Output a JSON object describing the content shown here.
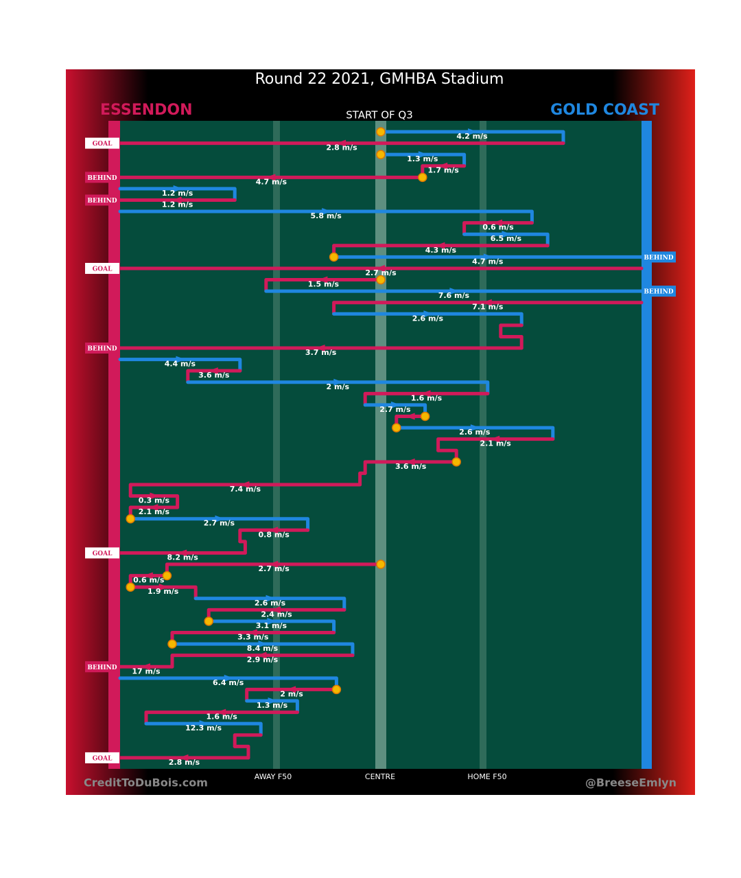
{
  "chart_data": {
    "type": "possession-chain",
    "title": "Round 22 2021, GMHBA Stadium",
    "subtitle": "START OF Q3",
    "teams": [
      {
        "name": "ESSENDON",
        "color": "#d11a5a"
      },
      {
        "name": "GOLD COAST",
        "color": "#1f87e0"
      }
    ],
    "field_labels": [
      "AWAY F50",
      "CENTRE",
      "HOME F50"
    ],
    "credits": [
      "CreditToDuBois.com",
      "@BreeseEmlyn"
    ],
    "segments": [
      {
        "team": 1,
        "from": 50,
        "to": 85,
        "label": "4.2 m/s",
        "marker": "start"
      },
      {
        "team": 0,
        "from": 85,
        "to": 0,
        "label": "2.8 m/s",
        "outcome": "GOAL"
      },
      {
        "team": 1,
        "from": 50,
        "to": 66,
        "label": "1.3 m/s",
        "marker": "start"
      },
      {
        "team": 0,
        "from": 66,
        "to": 58,
        "label": "1.7 m/s"
      },
      {
        "team": 0,
        "from": 58,
        "to": 0,
        "label": "4.7 m/s",
        "marker": "start",
        "outcome": "BEHIND"
      },
      {
        "team": 1,
        "from": 0,
        "to": 22,
        "label": "1.2 m/s"
      },
      {
        "team": 0,
        "from": 22,
        "to": 0,
        "label": "1.2 m/s",
        "outcome": "BEHIND"
      },
      {
        "team": 1,
        "from": 0,
        "to": 79,
        "label": "5.8 m/s"
      },
      {
        "team": 0,
        "from": 79,
        "to": 66,
        "label": "0.6 m/s"
      },
      {
        "team": 1,
        "from": 66,
        "to": 82,
        "label": "6.5 m/s"
      },
      {
        "team": 0,
        "from": 82,
        "to": 41,
        "label": "4.3 m/s"
      },
      {
        "team": 1,
        "from": 41,
        "to": 100,
        "label": "4.7 m/s",
        "marker": "start",
        "outcome": "BEHIND"
      },
      {
        "team": 0,
        "from": 100,
        "to": 0,
        "label": "2.7 m/s",
        "outcome": "GOAL"
      },
      {
        "team": 0,
        "from": 50,
        "to": 28,
        "label": "1.5 m/s",
        "marker": "start"
      },
      {
        "team": 1,
        "from": 28,
        "to": 100,
        "label": "7.6 m/s",
        "outcome": "BEHIND"
      },
      {
        "team": 0,
        "from": 100,
        "to": 41,
        "label": "7.1 m/s"
      },
      {
        "team": 1,
        "from": 41,
        "to": 77,
        "label": "2.6 m/s"
      },
      {
        "team": 0,
        "from": 77,
        "to": 73
      },
      {
        "team": 0,
        "from": 73,
        "to": 77
      },
      {
        "team": 0,
        "from": 77,
        "to": 0,
        "label": "3.7 m/s",
        "outcome": "BEHIND"
      },
      {
        "team": 1,
        "from": 0,
        "to": 23,
        "label": "4.4 m/s"
      },
      {
        "team": 0,
        "from": 23,
        "to": 13,
        "label": "3.6 m/s"
      },
      {
        "team": 1,
        "from": 13,
        "to": 70.5,
        "label": "2 m/s"
      },
      {
        "team": 0,
        "from": 70.5,
        "to": 47,
        "label": "1.6 m/s"
      },
      {
        "team": 1,
        "from": 47,
        "to": 58.5,
        "label": "2.7 m/s"
      },
      {
        "team": 0,
        "from": 58.5,
        "to": 53,
        "marker": "start"
      },
      {
        "team": 1,
        "from": 53,
        "to": 83,
        "label": "2.6 m/s",
        "marker": "start"
      },
      {
        "team": 0,
        "from": 83,
        "to": 61,
        "label": "2.1 m/s"
      },
      {
        "team": 0,
        "from": 61,
        "to": 64.5
      },
      {
        "team": 0,
        "from": 64.5,
        "to": 47,
        "label": "3.6 m/s",
        "marker": "start"
      },
      {
        "team": 0,
        "from": 47,
        "to": 46
      },
      {
        "team": 0,
        "from": 46,
        "to": 2,
        "label": "7.4 m/s"
      },
      {
        "team": 0,
        "from": 2,
        "to": 11,
        "label": "0.3 m/s"
      },
      {
        "team": 0,
        "from": 11,
        "to": 2,
        "label": "2.1 m/s"
      },
      {
        "team": 1,
        "from": 2,
        "to": 36,
        "label": "2.7 m/s",
        "marker": "start"
      },
      {
        "team": 0,
        "from": 36,
        "to": 23,
        "label": "0.8 m/s"
      },
      {
        "team": 0,
        "from": 23,
        "to": 24
      },
      {
        "team": 0,
        "from": 24,
        "to": 0,
        "label": "8.2 m/s",
        "outcome": "GOAL"
      },
      {
        "team": 0,
        "from": 50,
        "to": 9,
        "label": "2.7 m/s",
        "marker": "start"
      },
      {
        "team": 0,
        "from": 9,
        "to": 2,
        "label": "0.6 m/s",
        "marker": "start"
      },
      {
        "team": 0,
        "from": 2,
        "to": 14.5,
        "label": "1.9 m/s",
        "marker": "start"
      },
      {
        "team": 1,
        "from": 14.5,
        "to": 43,
        "label": "2.6 m/s"
      },
      {
        "team": 0,
        "from": 43,
        "to": 17,
        "label": "2.4 m/s"
      },
      {
        "team": 1,
        "from": 17,
        "to": 41,
        "label": "3.1 m/s",
        "marker": "start"
      },
      {
        "team": 0,
        "from": 41,
        "to": 10,
        "label": "3.3 m/s"
      },
      {
        "team": 1,
        "from": 10,
        "to": 44.6,
        "label": "8.4 m/s",
        "marker": "start"
      },
      {
        "team": 0,
        "from": 44.6,
        "to": 10,
        "label": "2.9 m/s"
      },
      {
        "team": 0,
        "from": 10,
        "to": 0,
        "label": "17 m/s",
        "outcome": "BEHIND"
      },
      {
        "team": 1,
        "from": 0,
        "to": 41.5,
        "label": "6.4 m/s"
      },
      {
        "team": 0,
        "from": 41.5,
        "to": 24.3,
        "label": "2 m/s",
        "marker": "start"
      },
      {
        "team": 1,
        "from": 24.3,
        "to": 34,
        "label": "1.3 m/s"
      },
      {
        "team": 0,
        "from": 34,
        "to": 5,
        "label": "1.6 m/s"
      },
      {
        "team": 1,
        "from": 5,
        "to": 27,
        "label": "12.3 m/s"
      },
      {
        "team": 0,
        "from": 27,
        "to": 22
      },
      {
        "team": 0,
        "from": 22,
        "to": 24.6
      },
      {
        "team": 0,
        "from": 24.6,
        "to": 0,
        "label": "2.8 m/s",
        "outcome": "GOAL"
      }
    ]
  }
}
